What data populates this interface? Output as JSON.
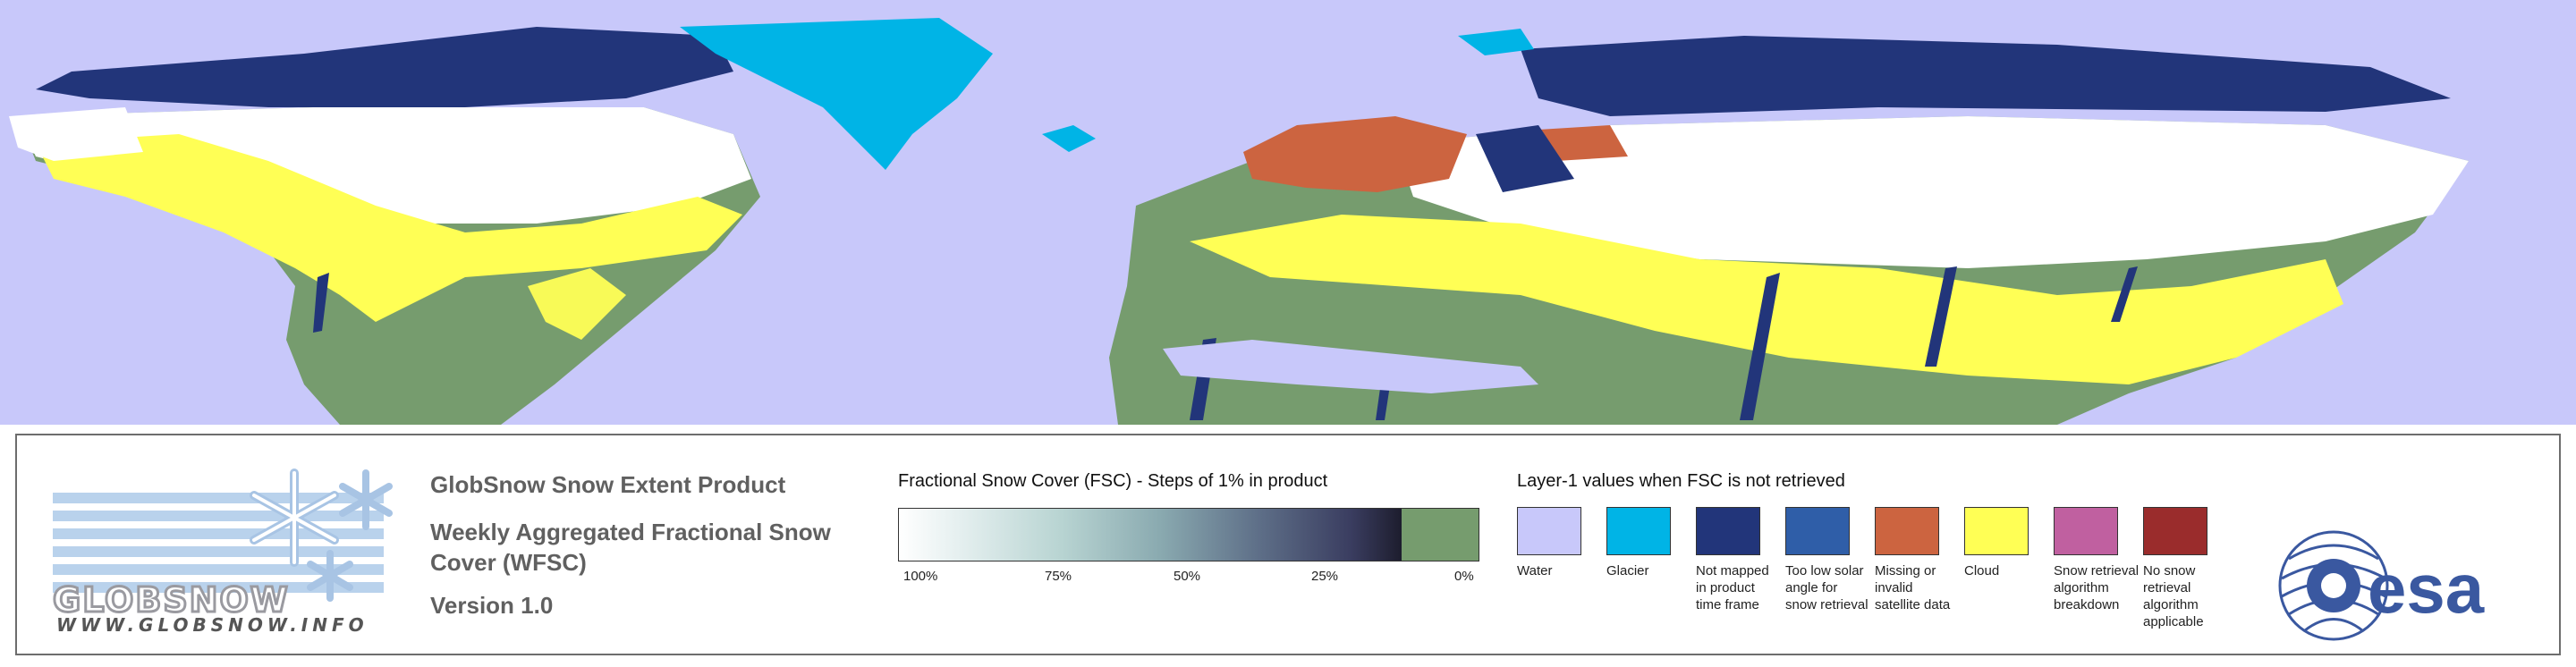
{
  "product": {
    "title": "GlobSnow Snow Extent Product",
    "subtitle": "Weekly Aggregated Fractional Snow Cover (WFSC)",
    "version": "Version 1.0"
  },
  "logo": {
    "name": "GLOBSNOW",
    "url": "WWW.GLOBSNOW.INFO",
    "partner_logo": "esa"
  },
  "fsc_legend": {
    "title": "Fractional Snow Cover (FSC) - Steps of 1% in product",
    "ticks": [
      "100%",
      "75%",
      "50%",
      "25%",
      "0%"
    ],
    "gradient_colors": [
      "#ffffff",
      "#b8d4d2",
      "#5e6f88",
      "#1c1c2c"
    ],
    "zero_color": "#769c6e"
  },
  "layer1_legend": {
    "title": "Layer-1 values when FSC is not retrieved",
    "items": [
      {
        "label": "Water",
        "color": "#c8c8fa"
      },
      {
        "label": "Glacier",
        "color": "#00b4e6"
      },
      {
        "label": "Not mapped in product time frame",
        "color": "#22357a"
      },
      {
        "label": "Too low solar angle for snow retrieval",
        "color": "#2f5ea8"
      },
      {
        "label": "Missing or invalid satellite data",
        "color": "#cc6440"
      },
      {
        "label": "Cloud",
        "color": "#ffff55"
      },
      {
        "label": "Snow retrieval algorithm breakdown",
        "color": "#c060a0"
      },
      {
        "label": "No snow retrieval algorithm applicable",
        "color": "#9a2c2c"
      }
    ]
  },
  "map_colors": {
    "water": "#c8c8fa",
    "glacier": "#00b4e6",
    "not_mapped": "#22357a",
    "low_solar": "#2f5ea8",
    "missing": "#cc6440",
    "cloud": "#ffff55",
    "land_no_snow": "#769c6e",
    "snow": "#ffffff"
  }
}
